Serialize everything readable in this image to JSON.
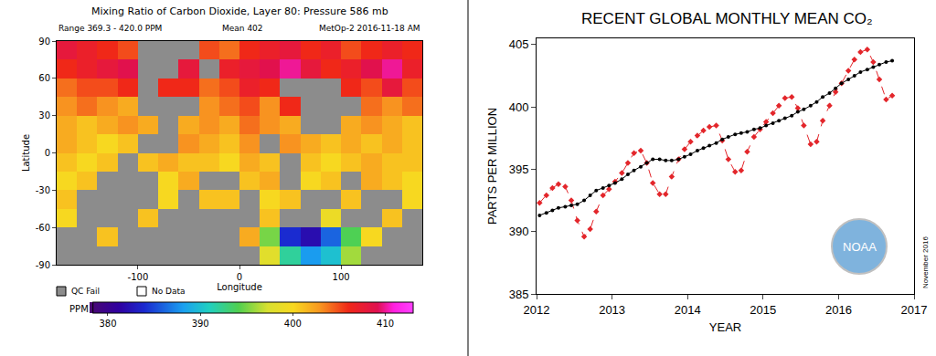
{
  "chart_data": [
    {
      "type": "heatmap",
      "title": "Mixing Ratio of Carbon Dioxide, Layer 80: Pressure 586 mb",
      "annotations": [
        "Range 369.3 - 420.0 PPM",
        "Mean 402",
        "MetOp-2 2016-11-18 AM"
      ],
      "xlabel": "Longitude",
      "ylabel": "Latitude",
      "x": [
        -170,
        -150,
        -130,
        -110,
        -90,
        -70,
        -50,
        -30,
        -10,
        10,
        30,
        50,
        70,
        90,
        110,
        130,
        150,
        170
      ],
      "y": [
        -82.5,
        -67.5,
        -52.5,
        -37.5,
        -22.5,
        -7.5,
        7.5,
        22.5,
        37.5,
        52.5,
        67.5,
        82.5
      ],
      "cells": [
        [
          null,
          null,
          null,
          null,
          null,
          null,
          null,
          null,
          null,
          null,
          398,
          392,
          388,
          390,
          396,
          null,
          null,
          null
        ],
        [
          null,
          null,
          401,
          null,
          null,
          null,
          null,
          null,
          null,
          402,
          395,
          384,
          382,
          386,
          394,
          400,
          null,
          null
        ],
        [
          400,
          null,
          null,
          null,
          401,
          null,
          null,
          null,
          null,
          null,
          401,
          null,
          null,
          399,
          null,
          null,
          401,
          null
        ],
        [
          401,
          null,
          null,
          null,
          null,
          400,
          null,
          401,
          401,
          null,
          400,
          401,
          null,
          null,
          401,
          null,
          null,
          400
        ],
        [
          400,
          401,
          null,
          null,
          null,
          400,
          402,
          null,
          null,
          401,
          402,
          null,
          400,
          401,
          null,
          402,
          401,
          400
        ],
        [
          401,
          400,
          401,
          null,
          401,
          402,
          401,
          401,
          400,
          402,
          401,
          null,
          401,
          400,
          401,
          402,
          401,
          401
        ],
        [
          402,
          401,
          400,
          401,
          null,
          null,
          403,
          402,
          401,
          403,
          null,
          403,
          402,
          401,
          402,
          401,
          402,
          401
        ],
        [
          402,
          401,
          402,
          403,
          402,
          null,
          402,
          403,
          402,
          404,
          403,
          402,
          null,
          null,
          402,
          403,
          402,
          401
        ],
        [
          403,
          404,
          403,
          402,
          null,
          null,
          null,
          403,
          404,
          405,
          403,
          406,
          null,
          null,
          null,
          404,
          403,
          404
        ],
        [
          404,
          405,
          405,
          406,
          null,
          406,
          406,
          404,
          405,
          407,
          406,
          null,
          null,
          null,
          406,
          405,
          408,
          405
        ],
        [
          406,
          407,
          408,
          409,
          null,
          null,
          408,
          null,
          407,
          408,
          409,
          410,
          408,
          406,
          407,
          409,
          410,
          407
        ],
        [
          408,
          407,
          406,
          405,
          null,
          null,
          null,
          405,
          404,
          406,
          407,
          408,
          406,
          407,
          405,
          406,
          407,
          406
        ]
      ],
      "xlim": [
        -180,
        180
      ],
      "ylim": [
        -90,
        90
      ],
      "xticks": [
        -100,
        0,
        100
      ],
      "yticks": [
        -90,
        -60,
        -30,
        0,
        30,
        60,
        90
      ],
      "grid": false,
      "colorbar": {
        "range": [
          378,
          413
        ],
        "ticks": [
          380,
          390,
          400,
          410
        ],
        "title": "PPM"
      },
      "legend_labels": [
        "QC Fail",
        "No Data"
      ]
    },
    {
      "type": "line",
      "title": "RECENT GLOBAL MONTHLY MEAN CO₂",
      "annotations": [
        "November 2016"
      ],
      "logo_text": "NOAA",
      "xlabel": "YEAR",
      "ylabel": "PARTS PER MILLION",
      "x": [
        2012.04,
        2012.13,
        2012.21,
        2012.29,
        2012.38,
        2012.46,
        2012.54,
        2012.63,
        2012.71,
        2012.79,
        2012.88,
        2012.96,
        2013.04,
        2013.13,
        2013.21,
        2013.29,
        2013.38,
        2013.46,
        2013.54,
        2013.63,
        2013.71,
        2013.79,
        2013.88,
        2013.96,
        2014.04,
        2014.13,
        2014.21,
        2014.29,
        2014.38,
        2014.46,
        2014.54,
        2014.63,
        2014.71,
        2014.79,
        2014.88,
        2014.96,
        2015.04,
        2015.13,
        2015.21,
        2015.29,
        2015.38,
        2015.46,
        2015.54,
        2015.63,
        2015.71,
        2015.79,
        2015.88,
        2015.96,
        2016.04,
        2016.13,
        2016.21,
        2016.29,
        2016.38,
        2016.46,
        2016.54,
        2016.63,
        2016.71
      ],
      "series": [
        {
          "color": "#e3262b",
          "line_style": "dashed",
          "marker": "diamond",
          "values": [
            392.3,
            392.9,
            393.5,
            393.8,
            393.6,
            392.5,
            390.9,
            389.6,
            390.2,
            391.6,
            392.9,
            393.4,
            394.0,
            394.7,
            395.5,
            396.3,
            396.5,
            395.5,
            393.9,
            393.0,
            393.0,
            394.4,
            395.8,
            396.6,
            397.2,
            397.7,
            398.1,
            398.4,
            398.5,
            397.3,
            395.8,
            394.8,
            394.9,
            396.4,
            397.6,
            398.2,
            398.8,
            399.5,
            400.1,
            400.7,
            400.8,
            399.9,
            398.5,
            397.0,
            397.2,
            398.9,
            400.1,
            401.2,
            401.9,
            402.9,
            403.8,
            404.4,
            404.6,
            403.6,
            402.2,
            400.6,
            400.9
          ]
        },
        {
          "color": "#000000",
          "line_style": "solid",
          "marker": "circle",
          "values": [
            391.3,
            391.5,
            391.7,
            391.9,
            392.0,
            392.1,
            392.2,
            392.5,
            392.9,
            393.3,
            393.5,
            393.7,
            393.9,
            394.2,
            394.6,
            394.9,
            395.2,
            395.5,
            395.8,
            395.8,
            395.7,
            395.7,
            395.8,
            396.0,
            396.2,
            396.5,
            396.7,
            396.9,
            397.1,
            397.4,
            397.6,
            397.8,
            397.9,
            398.0,
            398.2,
            398.3,
            398.5,
            398.7,
            398.9,
            399.1,
            399.3,
            399.6,
            399.8,
            400.1,
            400.4,
            400.8,
            401.1,
            401.5,
            401.9,
            402.2,
            402.5,
            402.8,
            403.0,
            403.2,
            403.4,
            403.6,
            403.7
          ]
        }
      ],
      "xlim": [
        2012,
        2017
      ],
      "ylim": [
        385,
        405.5
      ],
      "xticks": [
        2012,
        2013,
        2014,
        2015,
        2016,
        2017
      ],
      "yticks": [
        385,
        390,
        395,
        400,
        405
      ],
      "grid": false
    }
  ]
}
